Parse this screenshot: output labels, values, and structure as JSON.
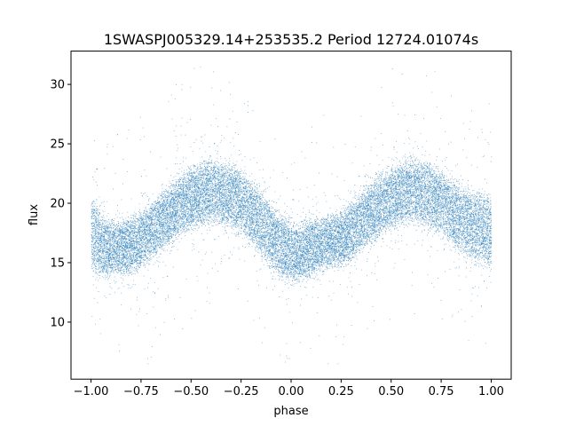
{
  "chart_data": {
    "type": "scatter",
    "title": "1SWASPJ005329.14+253535.2 Period 12724.01074s",
    "xlabel": "phase",
    "ylabel": "flux",
    "xlim": [
      -1.1,
      1.1
    ],
    "ylim": [
      5.2,
      32.8
    ],
    "xticks": [
      -1.0,
      -0.75,
      -0.5,
      -0.25,
      0.0,
      0.25,
      0.5,
      0.75,
      1.0
    ],
    "xtick_labels": [
      "−1.00",
      "−0.75",
      "−0.50",
      "−0.25",
      "0.00",
      "0.25",
      "0.50",
      "0.75",
      "1.00"
    ],
    "yticks": [
      10,
      15,
      20,
      25,
      30
    ],
    "ytick_labels": [
      "10",
      "15",
      "20",
      "25",
      "30"
    ],
    "grid": false,
    "point_color": "#1f77b4",
    "series": [
      {
        "x": [
          -1.0,
          -0.95,
          -0.9,
          -0.85,
          -0.8,
          -0.75,
          -0.7,
          -0.65,
          -0.6,
          -0.55,
          -0.5,
          -0.45,
          -0.4,
          -0.35,
          -0.3,
          -0.25,
          -0.2,
          -0.15,
          -0.1,
          -0.05,
          0.0,
          0.05,
          0.1,
          0.15,
          0.2,
          0.25,
          0.3,
          0.35,
          0.4,
          0.45,
          0.5,
          0.55,
          0.6,
          0.65,
          0.7,
          0.75,
          0.8,
          0.85,
          0.9,
          0.95,
          1.0
        ],
        "y": [
          17.5,
          16.4,
          16.2,
          16.3,
          16.5,
          16.9,
          17.6,
          18.4,
          19.2,
          19.9,
          20.4,
          20.8,
          21.0,
          20.9,
          20.6,
          20.0,
          19.2,
          18.2,
          17.2,
          16.3,
          15.9,
          15.9,
          16.3,
          16.6,
          16.8,
          17.0,
          17.6,
          18.4,
          19.2,
          19.9,
          20.4,
          20.8,
          21.0,
          20.9,
          20.6,
          20.0,
          19.2,
          18.6,
          18.1,
          17.8,
          17.5
        ],
        "band_half_width": [
          3.2,
          2.5,
          2.2,
          2.2,
          2.3,
          2.3,
          2.4,
          2.4,
          2.5,
          2.5,
          2.5,
          2.5,
          2.6,
          2.6,
          2.6,
          2.6,
          2.6,
          2.6,
          2.6,
          2.5,
          2.4,
          2.3,
          2.3,
          2.2,
          2.2,
          2.3,
          2.4,
          2.4,
          2.5,
          2.5,
          2.5,
          2.5,
          2.6,
          2.6,
          2.6,
          2.6,
          2.6,
          2.7,
          2.8,
          3.0,
          3.2
        ]
      }
    ]
  }
}
